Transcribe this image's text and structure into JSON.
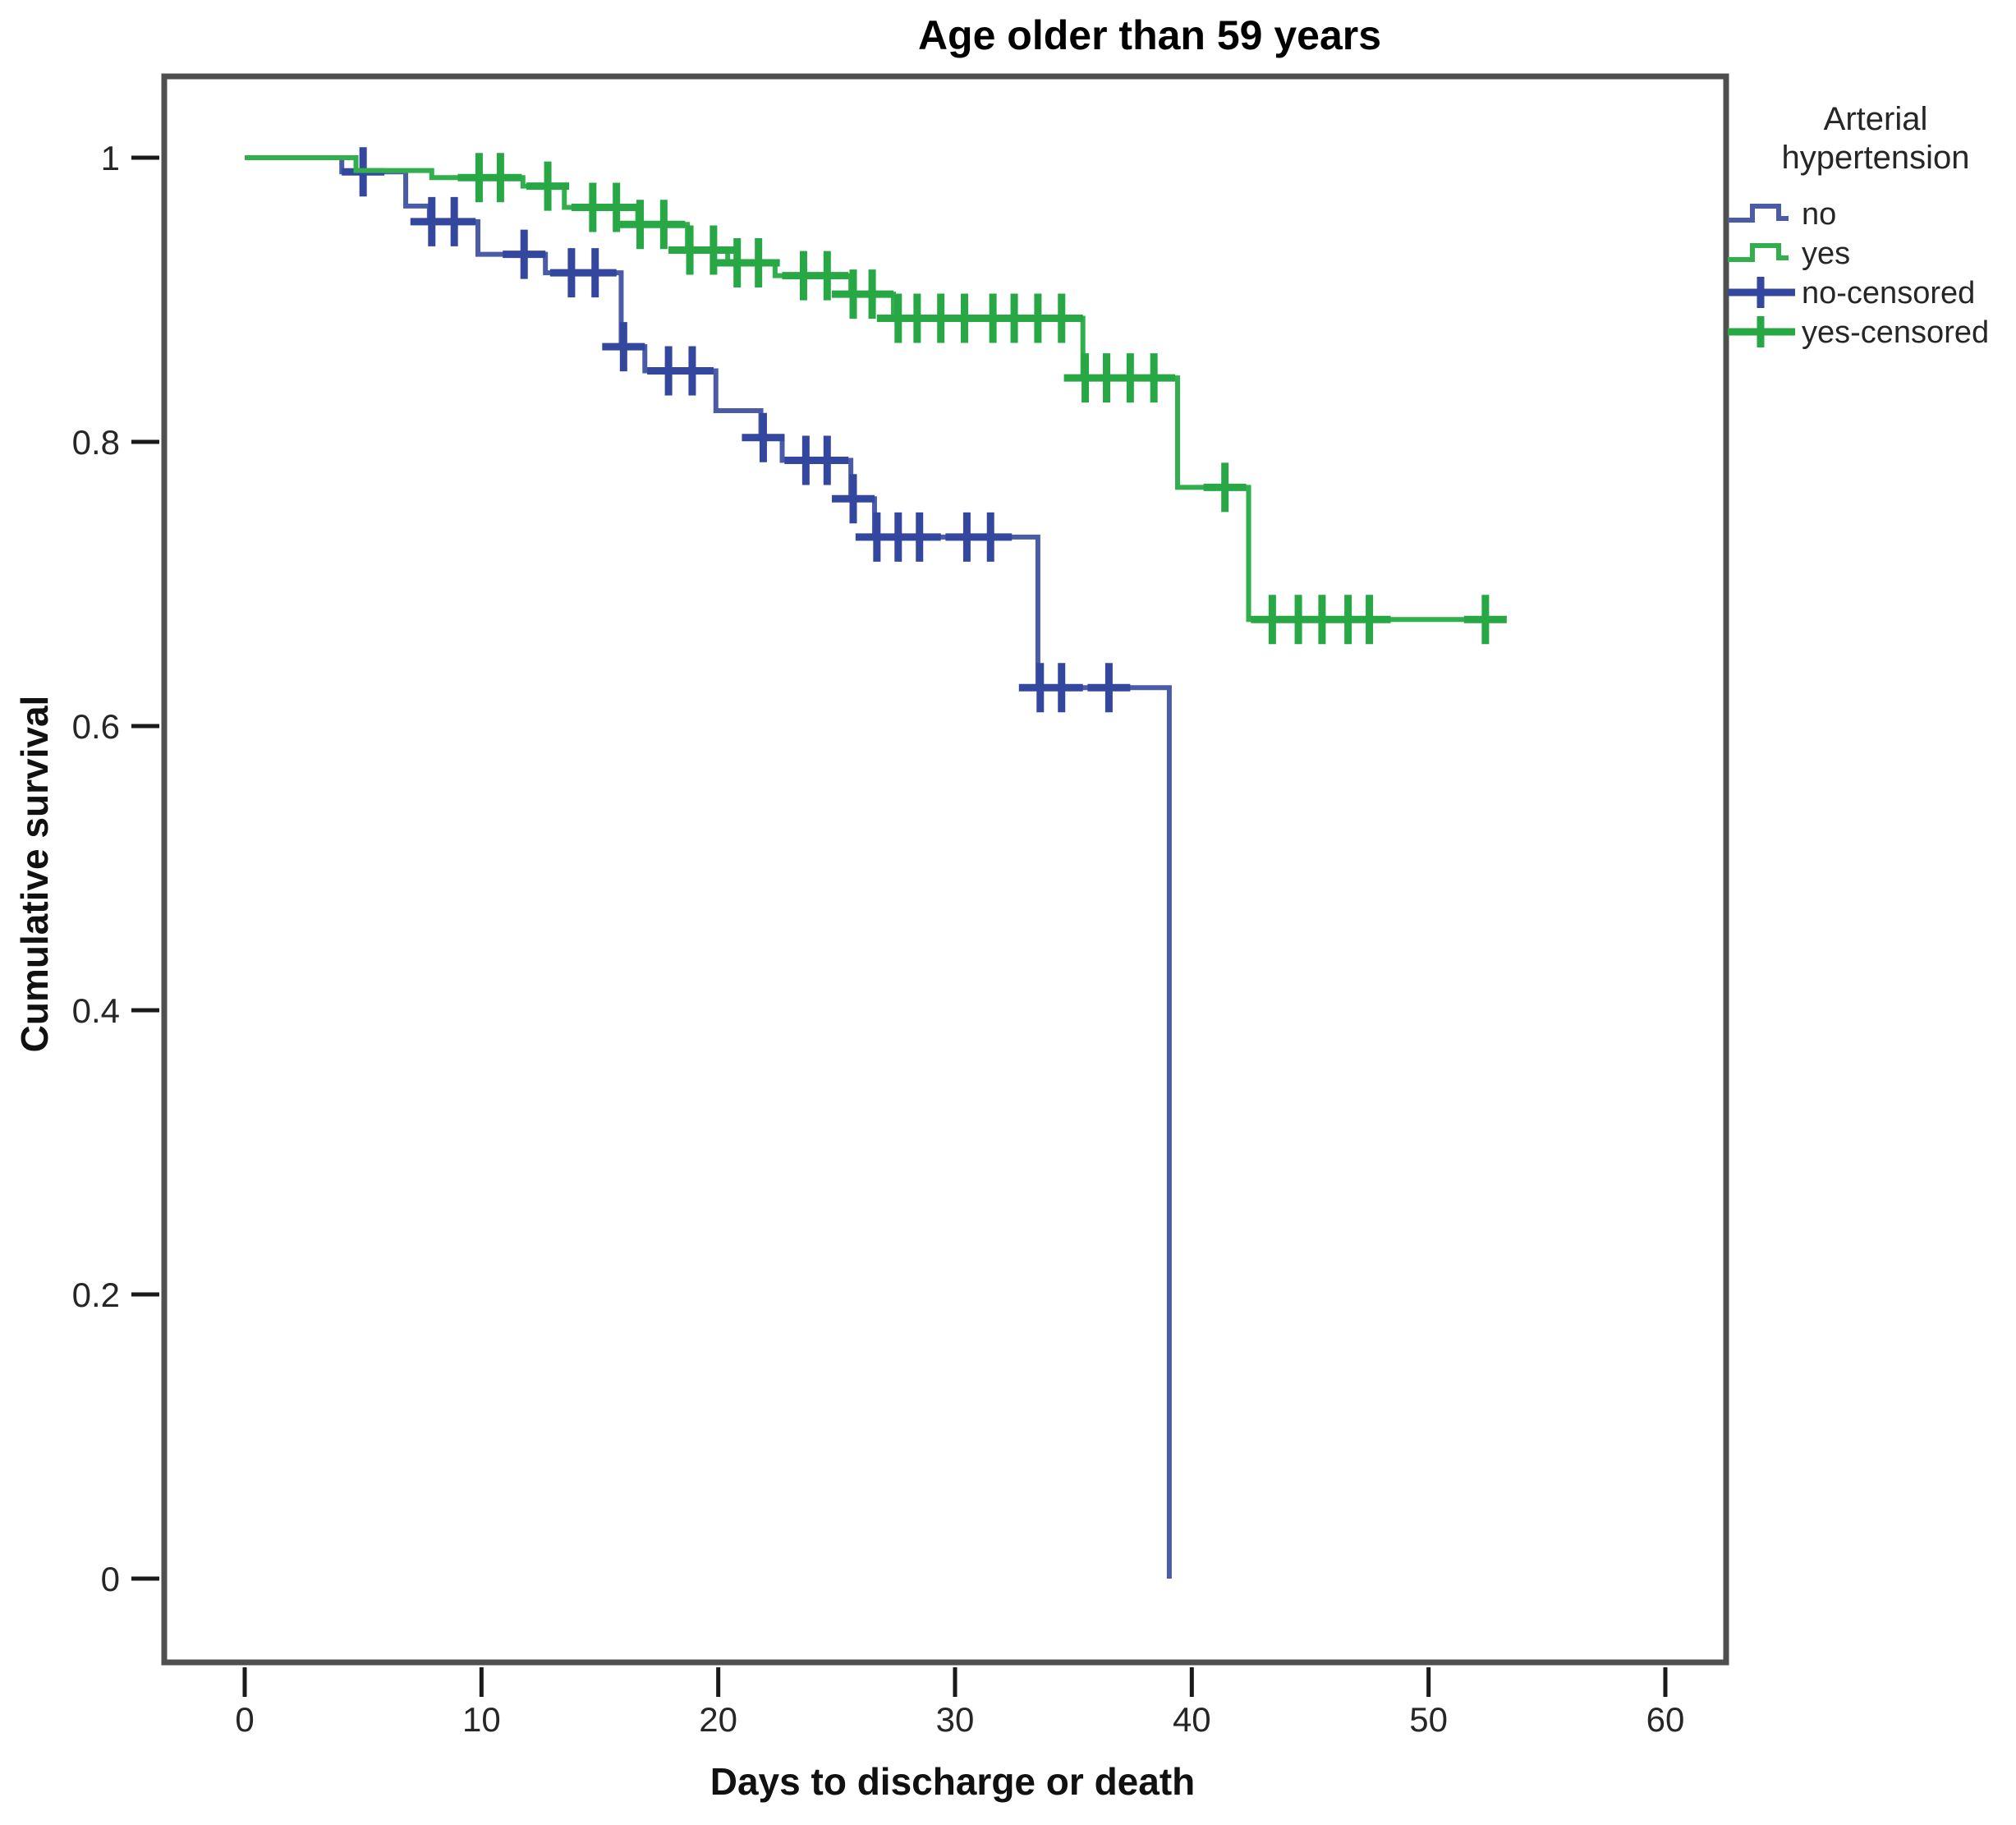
{
  "title": "Age older than 59 years",
  "axes": {
    "x_label": "Days to discharge or death",
    "y_label": "Cumulative survival",
    "x_ticks": [
      {
        "value": 0,
        "label": "0"
      },
      {
        "value": 10,
        "label": "10"
      },
      {
        "value": 20,
        "label": "20"
      },
      {
        "value": 30,
        "label": "30"
      },
      {
        "value": 40,
        "label": "40"
      },
      {
        "value": 50,
        "label": "50"
      },
      {
        "value": 60,
        "label": "60"
      }
    ],
    "y_ticks": [
      {
        "value": 1,
        "label": "1"
      },
      {
        "value": 0.8,
        "label": "0.8"
      },
      {
        "value": 0.6,
        "label": "0.6"
      },
      {
        "value": 0.4,
        "label": "0.4"
      },
      {
        "value": 0.2,
        "label": "0.2"
      },
      {
        "value": 0,
        "label": "0"
      }
    ]
  },
  "legend": {
    "title_lines": [
      "Arterial",
      "hypertension"
    ],
    "items": [
      {
        "label": "no",
        "swatch": "step",
        "color_key": "no_line"
      },
      {
        "label": "yes",
        "swatch": "step",
        "color_key": "yes_line"
      },
      {
        "label": "no-censored",
        "swatch": "plus",
        "color_key": "no_censor"
      },
      {
        "label": "yes-censored",
        "swatch": "plus",
        "color_key": "yes_censor"
      }
    ]
  },
  "colors": {
    "no_line": "#4a5ca8",
    "no_censor": "#33479e",
    "yes_line": "#31af4d",
    "yes_censor": "#28a745",
    "frame": "#4f4f4f",
    "tick": "#1a1a1a",
    "text": "#111111"
  },
  "chart_data": {
    "type": "line",
    "subtype": "kaplan-meier-step",
    "title": "Age older than 59 years",
    "xlabel": "Days to discharge or death",
    "ylabel": "Cumulative survival",
    "xlim": [
      0,
      63
    ],
    "ylim": [
      0,
      1.05
    ],
    "grid": false,
    "legend_position": "right-outside",
    "series": [
      {
        "name": "no",
        "group": "Arterial hypertension = no",
        "color_key": "no_line",
        "censor_color_key": "no_censor",
        "steps": [
          [
            0,
            1.0
          ],
          [
            4.1,
            0.99
          ],
          [
            6.8,
            0.966
          ],
          [
            7.8,
            0.955
          ],
          [
            9.85,
            0.932
          ],
          [
            12.7,
            0.919
          ],
          [
            15.9,
            0.867
          ],
          [
            16.9,
            0.85
          ],
          [
            19.9,
            0.822
          ],
          [
            21.8,
            0.803
          ],
          [
            22.7,
            0.787
          ],
          [
            25.6,
            0.76
          ],
          [
            26.6,
            0.733
          ],
          [
            33.5,
            0.627
          ],
          [
            39.05,
            0.0
          ]
        ],
        "censored": [
          [
            5.0,
            0.99
          ],
          [
            7.9,
            0.955
          ],
          [
            8.85,
            0.955
          ],
          [
            11.8,
            0.932
          ],
          [
            13.8,
            0.919
          ],
          [
            14.8,
            0.919
          ],
          [
            16.0,
            0.867
          ],
          [
            17.9,
            0.85
          ],
          [
            18.9,
            0.85
          ],
          [
            21.9,
            0.803
          ],
          [
            23.7,
            0.787
          ],
          [
            24.6,
            0.787
          ],
          [
            25.7,
            0.76
          ],
          [
            26.7,
            0.733
          ],
          [
            27.6,
            0.733
          ],
          [
            28.5,
            0.733
          ],
          [
            30.5,
            0.733
          ],
          [
            31.5,
            0.733
          ],
          [
            33.6,
            0.627
          ],
          [
            34.5,
            0.627
          ],
          [
            36.5,
            0.627
          ]
        ]
      },
      {
        "name": "yes",
        "group": "Arterial hypertension = yes",
        "color_key": "yes_line",
        "censor_color_key": "yes_censor",
        "steps": [
          [
            0,
            1.0
          ],
          [
            4.7,
            0.991
          ],
          [
            7.9,
            0.986
          ],
          [
            11.75,
            0.98
          ],
          [
            13.5,
            0.965
          ],
          [
            16.6,
            0.953
          ],
          [
            18.7,
            0.935
          ],
          [
            20.4,
            0.926
          ],
          [
            22.4,
            0.917
          ],
          [
            25.6,
            0.904
          ],
          [
            27.4,
            0.887
          ],
          [
            35.4,
            0.845
          ],
          [
            39.4,
            0.768
          ],
          [
            42.4,
            0.675
          ],
          [
            52.4,
            0.675
          ]
        ],
        "censored": [
          [
            9.9,
            0.986
          ],
          [
            10.8,
            0.986
          ],
          [
            12.8,
            0.98
          ],
          [
            14.7,
            0.965
          ],
          [
            15.7,
            0.965
          ],
          [
            16.7,
            0.953
          ],
          [
            17.7,
            0.953
          ],
          [
            18.8,
            0.935
          ],
          [
            19.8,
            0.935
          ],
          [
            20.8,
            0.926
          ],
          [
            21.7,
            0.926
          ],
          [
            23.6,
            0.917
          ],
          [
            24.6,
            0.917
          ],
          [
            25.7,
            0.904
          ],
          [
            26.5,
            0.904
          ],
          [
            27.6,
            0.887
          ],
          [
            28.4,
            0.887
          ],
          [
            29.4,
            0.887
          ],
          [
            30.4,
            0.887
          ],
          [
            31.6,
            0.887
          ],
          [
            32.5,
            0.887
          ],
          [
            33.5,
            0.887
          ],
          [
            34.5,
            0.887
          ],
          [
            35.5,
            0.845
          ],
          [
            36.4,
            0.845
          ],
          [
            37.4,
            0.845
          ],
          [
            38.4,
            0.845
          ],
          [
            41.4,
            0.768
          ],
          [
            43.4,
            0.675
          ],
          [
            44.5,
            0.675
          ],
          [
            45.5,
            0.675
          ],
          [
            46.6,
            0.675
          ],
          [
            47.5,
            0.675
          ],
          [
            52.4,
            0.675
          ]
        ]
      }
    ]
  }
}
